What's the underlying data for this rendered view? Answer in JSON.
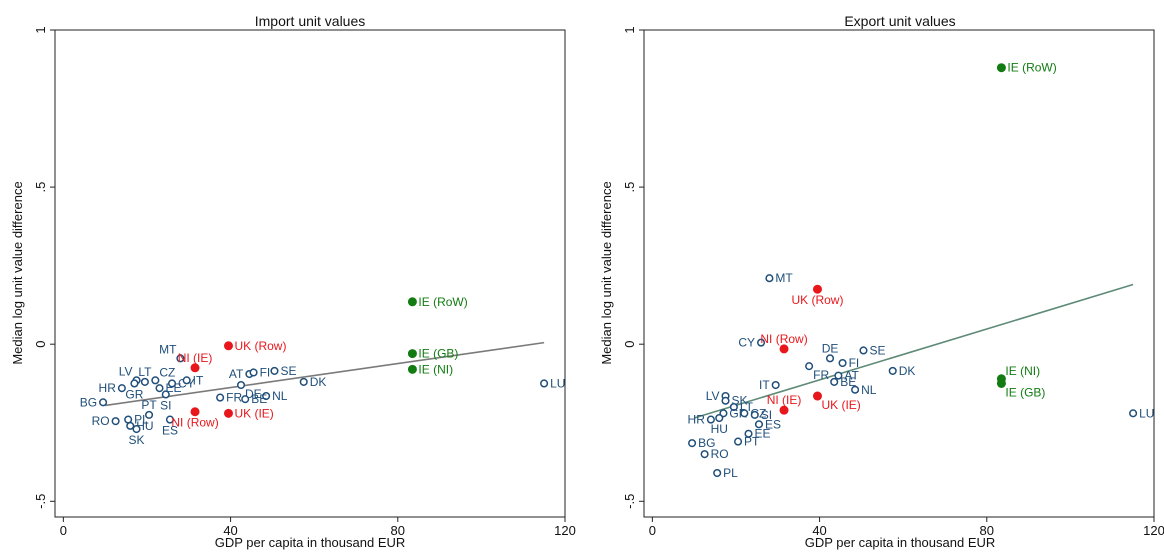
{
  "chart_data": [
    {
      "type": "scatter",
      "title": "Import unit values",
      "xlabel": "GDP per capita in thousand EUR",
      "ylabel": "Median log unit value difference",
      "xlim": [
        -2,
        120
      ],
      "ylim": [
        -0.55,
        1.0
      ],
      "xticks": [
        0,
        40,
        80,
        120
      ],
      "xtick_labels": [
        "0",
        "40",
        "80",
        "120"
      ],
      "yticks": [
        1,
        0.5,
        0,
        -0.5
      ],
      "ytick_labels": [
        "1",
        ".5",
        "0",
        "-.5"
      ],
      "grid": false,
      "legend": "none",
      "fit_line": {
        "x": [
          10,
          115
        ],
        "y": [
          -0.195,
          0.005
        ],
        "color": "#7a7a7a"
      },
      "series": [
        {
          "color": "#1f4e79",
          "marker": "open-circle",
          "label_color": "#1f4e79",
          "points": [
            {
              "label": "MT",
              "x": 28,
              "y": -0.045,
              "pos": "nw"
            },
            {
              "label": "LV",
              "x": 17.5,
              "y": -0.115,
              "pos": "nw"
            },
            {
              "label": "LT",
              "x": 19.5,
              "y": -0.12,
              "pos": "n"
            },
            {
              "label": "CZ",
              "x": 22,
              "y": -0.115,
              "pos": "ne"
            },
            {
              "label": "EE",
              "x": 23,
              "y": -0.14,
              "pos": "e"
            },
            {
              "label": "CY",
              "x": 26,
              "y": -0.125,
              "pos": "e"
            },
            {
              "label": "IT",
              "x": 29.5,
              "y": -0.115,
              "pos": "e"
            },
            {
              "label": "AT",
              "x": 44.5,
              "y": -0.095,
              "pos": "w"
            },
            {
              "label": "FI",
              "x": 45.5,
              "y": -0.09,
              "pos": "e"
            },
            {
              "label": "SE",
              "x": 50.5,
              "y": -0.085,
              "pos": "e"
            },
            {
              "label": "DE",
              "x": 42.5,
              "y": -0.13,
              "pos": "se"
            },
            {
              "label": "DK",
              "x": 57.5,
              "y": -0.12,
              "pos": "e"
            },
            {
              "label": "LU",
              "x": 115,
              "y": -0.125,
              "pos": "e"
            },
            {
              "label": "NL",
              "x": 48.5,
              "y": -0.165,
              "pos": "e"
            },
            {
              "label": "FR",
              "x": 37.5,
              "y": -0.17,
              "pos": "e"
            },
            {
              "label": "BE",
              "x": 43.5,
              "y": -0.175,
              "pos": "e"
            },
            {
              "label": "HR",
              "x": 14,
              "y": -0.14,
              "pos": "w"
            },
            {
              "label": "GR",
              "x": 17,
              "y": -0.125,
              "pos": "s"
            },
            {
              "label": "SI",
              "x": 24.5,
              "y": -0.16,
              "pos": "s"
            },
            {
              "label": "BG",
              "x": 9.5,
              "y": -0.185,
              "pos": "w"
            },
            {
              "label": "PT",
              "x": 20.5,
              "y": -0.225,
              "pos": "n"
            },
            {
              "label": "ES",
              "x": 25.5,
              "y": -0.24,
              "pos": "s"
            },
            {
              "label": "RO",
              "x": 12.5,
              "y": -0.245,
              "pos": "w"
            },
            {
              "label": "PL",
              "x": 15.5,
              "y": -0.24,
              "pos": "e"
            },
            {
              "label": "HU",
              "x": 16,
              "y": -0.26,
              "pos": "e"
            },
            {
              "label": "SK",
              "x": 17.5,
              "y": -0.27,
              "pos": "s"
            }
          ]
        },
        {
          "color": "#e8171c",
          "marker": "filled-circle",
          "label_color": "#e8171c",
          "points": [
            {
              "label": "UK (Row)",
              "x": 39.5,
              "y": -0.005,
              "pos": "e"
            },
            {
              "label": "NI (IE)",
              "x": 31.5,
              "y": -0.075,
              "pos": "n"
            },
            {
              "label": "NI (Row)",
              "x": 31.5,
              "y": -0.215,
              "pos": "s"
            },
            {
              "label": "UK (IE)",
              "x": 39.5,
              "y": -0.22,
              "pos": "e"
            }
          ]
        },
        {
          "color": "#127c12",
          "marker": "filled-circle",
          "label_color": "#127c12",
          "points": [
            {
              "label": "IE (RoW)",
              "x": 83.5,
              "y": 0.135,
              "pos": "e"
            },
            {
              "label": "IE (GB)",
              "x": 83.5,
              "y": -0.03,
              "pos": "e"
            },
            {
              "label": "IE (NI)",
              "x": 83.5,
              "y": -0.08,
              "pos": "e"
            }
          ]
        }
      ]
    },
    {
      "type": "scatter",
      "title": "Export unit values",
      "xlabel": "GDP per capita in thousand EUR",
      "ylabel": "Median log unit value difference",
      "xlim": [
        -2,
        120
      ],
      "ylim": [
        -0.55,
        1.0
      ],
      "xticks": [
        0,
        40,
        80,
        120
      ],
      "xtick_labels": [
        "0",
        "40",
        "80",
        "120"
      ],
      "yticks": [
        1,
        0.5,
        0,
        -0.5
      ],
      "ytick_labels": [
        "1",
        ".5",
        "0",
        "-.5"
      ],
      "grid": false,
      "legend": "none",
      "fit_line": {
        "x": [
          10,
          115
        ],
        "y": [
          -0.235,
          0.19
        ],
        "color": "#5f8a78"
      },
      "series": [
        {
          "color": "#1f4e79",
          "marker": "open-circle",
          "label_color": "#1f4e79",
          "points": [
            {
              "label": "MT",
              "x": 28,
              "y": 0.21,
              "pos": "e"
            },
            {
              "label": "CY",
              "x": 26,
              "y": 0.005,
              "pos": "w"
            },
            {
              "label": "DE",
              "x": 42.5,
              "y": -0.045,
              "pos": "n"
            },
            {
              "label": "SE",
              "x": 50.5,
              "y": -0.02,
              "pos": "e"
            },
            {
              "label": "FR",
              "x": 37.5,
              "y": -0.07,
              "pos": "se"
            },
            {
              "label": "FI",
              "x": 45.5,
              "y": -0.06,
              "pos": "e"
            },
            {
              "label": "DK",
              "x": 57.5,
              "y": -0.085,
              "pos": "e"
            },
            {
              "label": "AT",
              "x": 44.5,
              "y": -0.1,
              "pos": "e"
            },
            {
              "label": "BE",
              "x": 43.5,
              "y": -0.12,
              "pos": "e"
            },
            {
              "label": "IT",
              "x": 29.5,
              "y": -0.13,
              "pos": "w"
            },
            {
              "label": "NL",
              "x": 48.5,
              "y": -0.145,
              "pos": "e"
            },
            {
              "label": "LU",
              "x": 115,
              "y": -0.22,
              "pos": "e"
            },
            {
              "label": "LV",
              "x": 17.5,
              "y": -0.165,
              "pos": "w"
            },
            {
              "label": "SK",
              "x": 17.5,
              "y": -0.18,
              "pos": "e"
            },
            {
              "label": "LT",
              "x": 19.5,
              "y": -0.2,
              "pos": "e"
            },
            {
              "label": "GR",
              "x": 17,
              "y": -0.22,
              "pos": "e"
            },
            {
              "label": "CZ",
              "x": 22,
              "y": -0.22,
              "pos": "e"
            },
            {
              "label": "SI",
              "x": 24.5,
              "y": -0.225,
              "pos": "e"
            },
            {
              "label": "HR",
              "x": 14,
              "y": -0.24,
              "pos": "w"
            },
            {
              "label": "HU",
              "x": 16,
              "y": -0.235,
              "pos": "s"
            },
            {
              "label": "ES",
              "x": 25.5,
              "y": -0.255,
              "pos": "e"
            },
            {
              "label": "EE",
              "x": 23,
              "y": -0.285,
              "pos": "e"
            },
            {
              "label": "PT",
              "x": 20.5,
              "y": -0.31,
              "pos": "e"
            },
            {
              "label": "BG",
              "x": 9.5,
              "y": -0.315,
              "pos": "e"
            },
            {
              "label": "RO",
              "x": 12.5,
              "y": -0.35,
              "pos": "e"
            },
            {
              "label": "PL",
              "x": 15.5,
              "y": -0.41,
              "pos": "e"
            }
          ]
        },
        {
          "color": "#e8171c",
          "marker": "filled-circle",
          "label_color": "#e8171c",
          "points": [
            {
              "label": "UK (Row)",
              "x": 39.5,
              "y": 0.175,
              "pos": "s"
            },
            {
              "label": "NI (Row)",
              "x": 31.5,
              "y": -0.015,
              "pos": "n"
            },
            {
              "label": "NI (IE)",
              "x": 31.5,
              "y": -0.21,
              "pos": "n"
            },
            {
              "label": "UK (IE)",
              "x": 39.5,
              "y": -0.165,
              "pos": "se"
            }
          ]
        },
        {
          "color": "#127c12",
          "marker": "filled-circle",
          "label_color": "#127c12",
          "points": [
            {
              "label": "IE (RoW)",
              "x": 83.5,
              "y": 0.88,
              "pos": "e"
            },
            {
              "label": "IE (NI)",
              "x": 83.5,
              "y": -0.11,
              "pos": "ne"
            },
            {
              "label": "IE (GB)",
              "x": 83.5,
              "y": -0.125,
              "pos": "se"
            }
          ]
        }
      ]
    }
  ]
}
